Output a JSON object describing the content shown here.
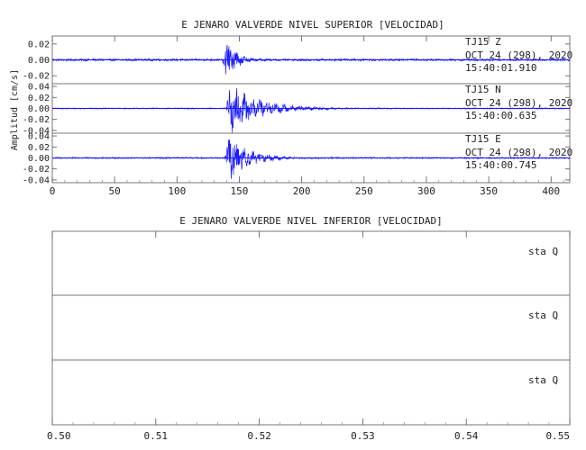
{
  "chart_data": [
    {
      "type": "line",
      "title": "E JENARO VALVERDE NIVEL SUPERIOR [VELOCIDAD]",
      "ylabel": "Amplitud [cm/s]",
      "xlabel": "",
      "xlim": [
        0,
        415
      ],
      "x_ticks": [
        0,
        50,
        100,
        150,
        200,
        250,
        300,
        350,
        400
      ],
      "x_tick_labels": [
        "0",
        "50",
        "100",
        "150",
        "200",
        "250",
        "300",
        "350",
        "400"
      ],
      "line_color": "#1a1aff",
      "grid": false,
      "channels": [
        {
          "station": "TJ15",
          "component": "Z",
          "date": "OCT 24 (298), 2020",
          "time": "15:40:01.910",
          "ylim": [
            -0.03,
            0.03
          ],
          "y_ticks": [
            -0.02,
            0.0,
            0.02
          ],
          "y_tick_labels": [
            "-0.02",
            "0.00",
            "0.02"
          ],
          "peak_time": 140,
          "peak_amplitude": 0.025,
          "coda_end": 165,
          "noise_level": 0.0012
        },
        {
          "station": "TJ15",
          "component": "N",
          "date": "OCT 24 (298), 2020",
          "time": "15:40:00.635",
          "ylim": [
            -0.045,
            0.045
          ],
          "y_ticks": [
            -0.04,
            -0.02,
            0.0,
            0.02,
            0.04
          ],
          "y_tick_labels": [
            "-0.04",
            "-0.02",
            "0.00",
            "0.02",
            "0.04"
          ],
          "peak_time": 143,
          "peak_amplitude": 0.04,
          "coda_end": 215,
          "noise_level": 0.0009
        },
        {
          "station": "TJ15",
          "component": "E",
          "date": "OCT 24 (298), 2020",
          "time": "15:40:00.745",
          "ylim": [
            -0.045,
            0.045
          ],
          "y_ticks": [
            -0.04,
            -0.02,
            0.0,
            0.02,
            0.04
          ],
          "y_tick_labels": [
            "-0.04",
            "-0.02",
            "0.00",
            "0.02",
            "0.04"
          ],
          "peak_time": 142,
          "peak_amplitude": 0.04,
          "coda_end": 190,
          "noise_level": 0.0012
        }
      ]
    },
    {
      "type": "line",
      "title": "E JENARO VALVERDE NIVEL INFERIOR [VELOCIDAD]",
      "xlabel": "",
      "ylabel": "",
      "xlim": [
        0.5,
        0.55
      ],
      "x_ticks": [
        0.5,
        0.51,
        0.52,
        0.53,
        0.54,
        0.55
      ],
      "x_tick_labels": [
        "0.50",
        "0.51",
        "0.52",
        "0.53",
        "0.54",
        "0.55"
      ],
      "grid": false,
      "channels": [
        {
          "label": "sta  Q",
          "values": []
        },
        {
          "label": "sta  Q",
          "values": []
        },
        {
          "label": "sta  Q",
          "values": []
        }
      ]
    }
  ]
}
